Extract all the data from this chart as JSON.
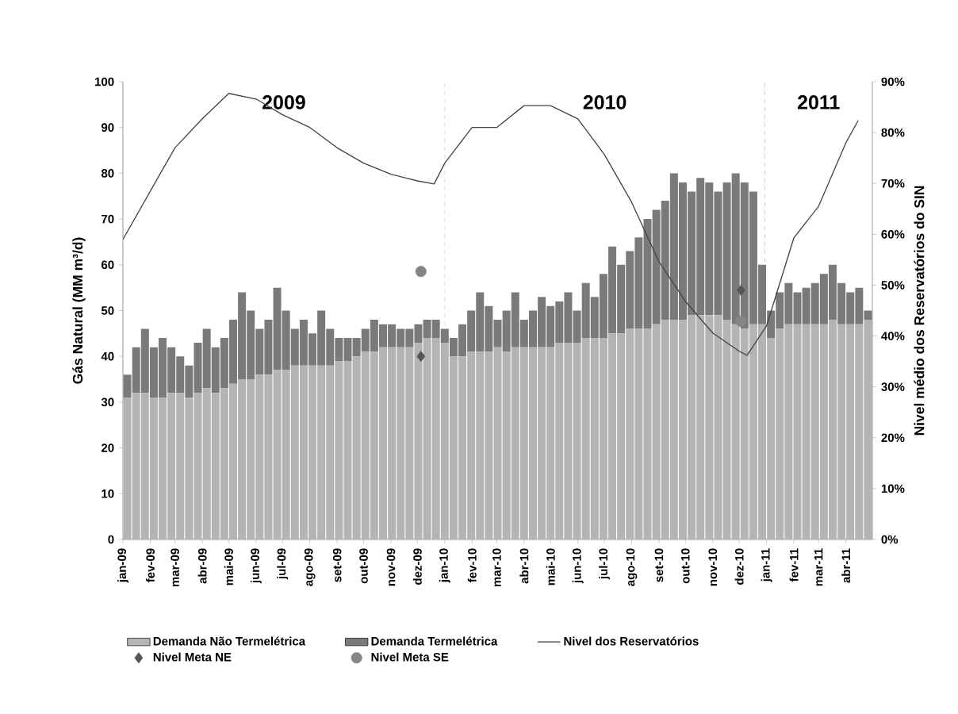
{
  "chart_data": {
    "type": "bar",
    "stacked": true,
    "x": [
      "2009-01-06",
      "2009-01-16",
      "2009-01-26",
      "2009-02-05",
      "2009-02-15",
      "2009-02-25",
      "2009-03-07",
      "2009-03-17",
      "2009-03-27",
      "2009-04-06",
      "2009-04-16",
      "2009-04-26",
      "2009-05-06",
      "2009-05-16",
      "2009-05-26",
      "2009-06-05",
      "2009-06-15",
      "2009-06-25",
      "2009-07-05",
      "2009-07-15",
      "2009-07-25",
      "2009-08-04",
      "2009-08-14",
      "2009-08-24",
      "2009-09-03",
      "2009-09-13",
      "2009-09-23",
      "2009-10-03",
      "2009-10-13",
      "2009-10-23",
      "2009-11-02",
      "2009-11-12",
      "2009-11-22",
      "2009-12-02",
      "2009-12-12",
      "2009-12-22",
      "2010-01-01",
      "2010-01-11",
      "2010-01-21",
      "2010-01-31",
      "2010-02-10",
      "2010-02-20",
      "2010-03-02",
      "2010-03-12",
      "2010-03-22",
      "2010-04-01",
      "2010-04-11",
      "2010-04-21",
      "2010-05-01",
      "2010-05-11",
      "2010-05-21",
      "2010-05-31",
      "2010-06-10",
      "2010-06-20",
      "2010-06-30",
      "2010-07-10",
      "2010-07-20",
      "2010-07-30",
      "2010-08-09",
      "2010-08-19",
      "2010-08-29",
      "2010-09-08",
      "2010-09-18",
      "2010-09-28",
      "2010-10-08",
      "2010-10-18",
      "2010-10-28",
      "2010-11-07",
      "2010-11-17",
      "2010-11-27",
      "2010-12-07",
      "2010-12-17",
      "2010-12-27",
      "2011-01-06",
      "2011-01-16",
      "2011-01-26",
      "2011-02-05",
      "2011-02-15",
      "2011-02-25",
      "2011-03-07",
      "2011-03-17",
      "2011-03-27",
      "2011-04-06",
      "2011-04-16",
      "2011-04-26"
    ],
    "series": [
      {
        "name": "Demanda Não Termelétrica",
        "color": "#b4b4b4",
        "values": [
          31,
          32,
          32,
          31,
          31,
          32,
          32,
          31,
          32,
          33,
          32,
          33,
          34,
          35,
          35,
          36,
          36,
          37,
          37,
          38,
          38,
          38,
          38,
          38,
          39,
          39,
          40,
          41,
          41,
          42,
          42,
          42,
          42,
          43,
          44,
          44,
          43,
          40,
          40,
          41,
          41,
          41,
          42,
          41,
          42,
          42,
          42,
          42,
          42,
          43,
          43,
          43,
          44,
          44,
          44,
          45,
          45,
          46,
          46,
          46,
          47,
          48,
          48,
          48,
          49,
          49,
          49,
          49,
          48,
          47,
          46,
          47,
          47,
          44,
          46,
          47,
          47,
          47,
          47,
          47,
          48,
          47,
          47,
          47,
          48
        ]
      },
      {
        "name": "Demanda Termelétrica",
        "color": "#7a7a7a",
        "values": [
          5,
          10,
          14,
          11,
          13,
          10,
          8,
          7,
          11,
          13,
          10,
          11,
          14,
          19,
          15,
          10,
          12,
          18,
          13,
          8,
          10,
          7,
          12,
          8,
          5,
          5,
          4,
          5,
          7,
          5,
          5,
          4,
          4,
          4,
          4,
          4,
          3,
          4,
          7,
          9,
          13,
          10,
          6,
          9,
          12,
          6,
          8,
          11,
          9,
          9,
          11,
          7,
          12,
          9,
          14,
          19,
          15,
          17,
          20,
          24,
          25,
          26,
          32,
          30,
          27,
          30,
          29,
          27,
          30,
          33,
          32,
          29,
          13,
          6,
          8,
          9,
          7,
          8,
          9,
          11,
          12,
          9,
          7,
          8,
          2
        ]
      },
      {
        "name": "Nivel dos Reservatórios",
        "type": "line",
        "axis": "y2",
        "color": "#444444",
        "marker": "none",
        "x": [
          "2009-01-01",
          "2009-03-01",
          "2009-04-01",
          "2009-05-01",
          "2009-06-01",
          "2009-07-01",
          "2009-08-01",
          "2009-09-01",
          "2009-10-01",
          "2009-11-01",
          "2009-12-01",
          "2009-12-20",
          "2010-01-01",
          "2010-02-01",
          "2010-03-01",
          "2010-04-01",
          "2010-05-01",
          "2010-06-01",
          "2010-07-01",
          "2010-08-01",
          "2010-09-01",
          "2010-10-01",
          "2010-11-01",
          "2010-12-01",
          "2010-12-10",
          "2011-01-01",
          "2011-02-01",
          "2011-03-01",
          "2011-04-01",
          "2011-04-15"
        ],
        "values": [
          59,
          77,
          82.7,
          87.7,
          86.6,
          83.5,
          81,
          77,
          74,
          71.8,
          70.5,
          69.9,
          74,
          81,
          81,
          85.3,
          85.3,
          82.7,
          75.7,
          66.3,
          54.6,
          46.8,
          40.6,
          37,
          36.2,
          42,
          59.3,
          65.5,
          78,
          82.4
        ]
      },
      {
        "name": "Nivel Meta NE",
        "type": "scatter",
        "axis": "y2",
        "color": "#555555",
        "marker": "diamond",
        "x": [
          "2009-12-05",
          "2010-12-03"
        ],
        "values": [
          36,
          49
        ]
      },
      {
        "name": "Nivel Meta SE",
        "type": "scatter",
        "axis": "y2",
        "color": "#858585",
        "marker": "circle",
        "x": [
          "2009-12-05",
          "2010-12-03"
        ],
        "values": [
          52.7,
          42.9
        ]
      }
    ],
    "xlim": [
      "2009-01-01",
      "2011-05-01"
    ],
    "xticks": [
      {
        "value": "2009-01-01",
        "label": "jan-09"
      },
      {
        "value": "2009-02-01",
        "label": "fev-09"
      },
      {
        "value": "2009-03-01",
        "label": "mar-09"
      },
      {
        "value": "2009-04-01",
        "label": "abr-09"
      },
      {
        "value": "2009-05-01",
        "label": "mai-09"
      },
      {
        "value": "2009-06-01",
        "label": "jun-09"
      },
      {
        "value": "2009-07-01",
        "label": "jul-09"
      },
      {
        "value": "2009-08-01",
        "label": "ago-09"
      },
      {
        "value": "2009-09-01",
        "label": "set-09"
      },
      {
        "value": "2009-10-01",
        "label": "out-09"
      },
      {
        "value": "2009-11-01",
        "label": "nov-09"
      },
      {
        "value": "2009-12-01",
        "label": "dez-09"
      },
      {
        "value": "2010-01-01",
        "label": "jan-10"
      },
      {
        "value": "2010-02-01",
        "label": "fev-10"
      },
      {
        "value": "2010-03-01",
        "label": "mar-10"
      },
      {
        "value": "2010-04-01",
        "label": "abr-10"
      },
      {
        "value": "2010-05-01",
        "label": "mai-10"
      },
      {
        "value": "2010-06-01",
        "label": "jun-10"
      },
      {
        "value": "2010-07-01",
        "label": "jul-10"
      },
      {
        "value": "2010-08-01",
        "label": "ago-10"
      },
      {
        "value": "2010-09-01",
        "label": "set-10"
      },
      {
        "value": "2010-10-01",
        "label": "out-10"
      },
      {
        "value": "2010-11-01",
        "label": "nov-10"
      },
      {
        "value": "2010-12-01",
        "label": "dez-10"
      },
      {
        "value": "2011-01-01",
        "label": "jan-11"
      },
      {
        "value": "2011-02-01",
        "label": "fev-11"
      },
      {
        "value": "2011-03-01",
        "label": "mar-11"
      },
      {
        "value": "2011-04-01",
        "label": "abr-11"
      }
    ],
    "ylim": [
      0,
      100
    ],
    "yticks": [
      0,
      10,
      20,
      30,
      40,
      50,
      60,
      70,
      80,
      90,
      100
    ],
    "y2lim": [
      0,
      90
    ],
    "y2ticks": [
      {
        "value": 0,
        "label": "0%"
      },
      {
        "value": 10,
        "label": "10%"
      },
      {
        "value": 20,
        "label": "20%"
      },
      {
        "value": 30,
        "label": "30%"
      },
      {
        "value": 40,
        "label": "40%"
      },
      {
        "value": 50,
        "label": "50%"
      },
      {
        "value": 60,
        "label": "60%"
      },
      {
        "value": 70,
        "label": "70%"
      },
      {
        "value": 80,
        "label": "80%"
      },
      {
        "value": 90,
        "label": "90%"
      }
    ],
    "ylabel": "Gás Natural (MM m³/d)",
    "y2label": "Nivel médio dos Reservatórios do SIN",
    "ref_lines": [
      {
        "axis": "x",
        "value": "2010-01-01",
        "color": "#aaaaaa",
        "line_style": "dashed"
      },
      {
        "axis": "x",
        "value": "2010-12-30",
        "color": "#aaaaaa",
        "line_style": "dashed"
      }
    ],
    "annotations": [
      "2009",
      "2010",
      "2011"
    ],
    "legend": "bottom"
  }
}
